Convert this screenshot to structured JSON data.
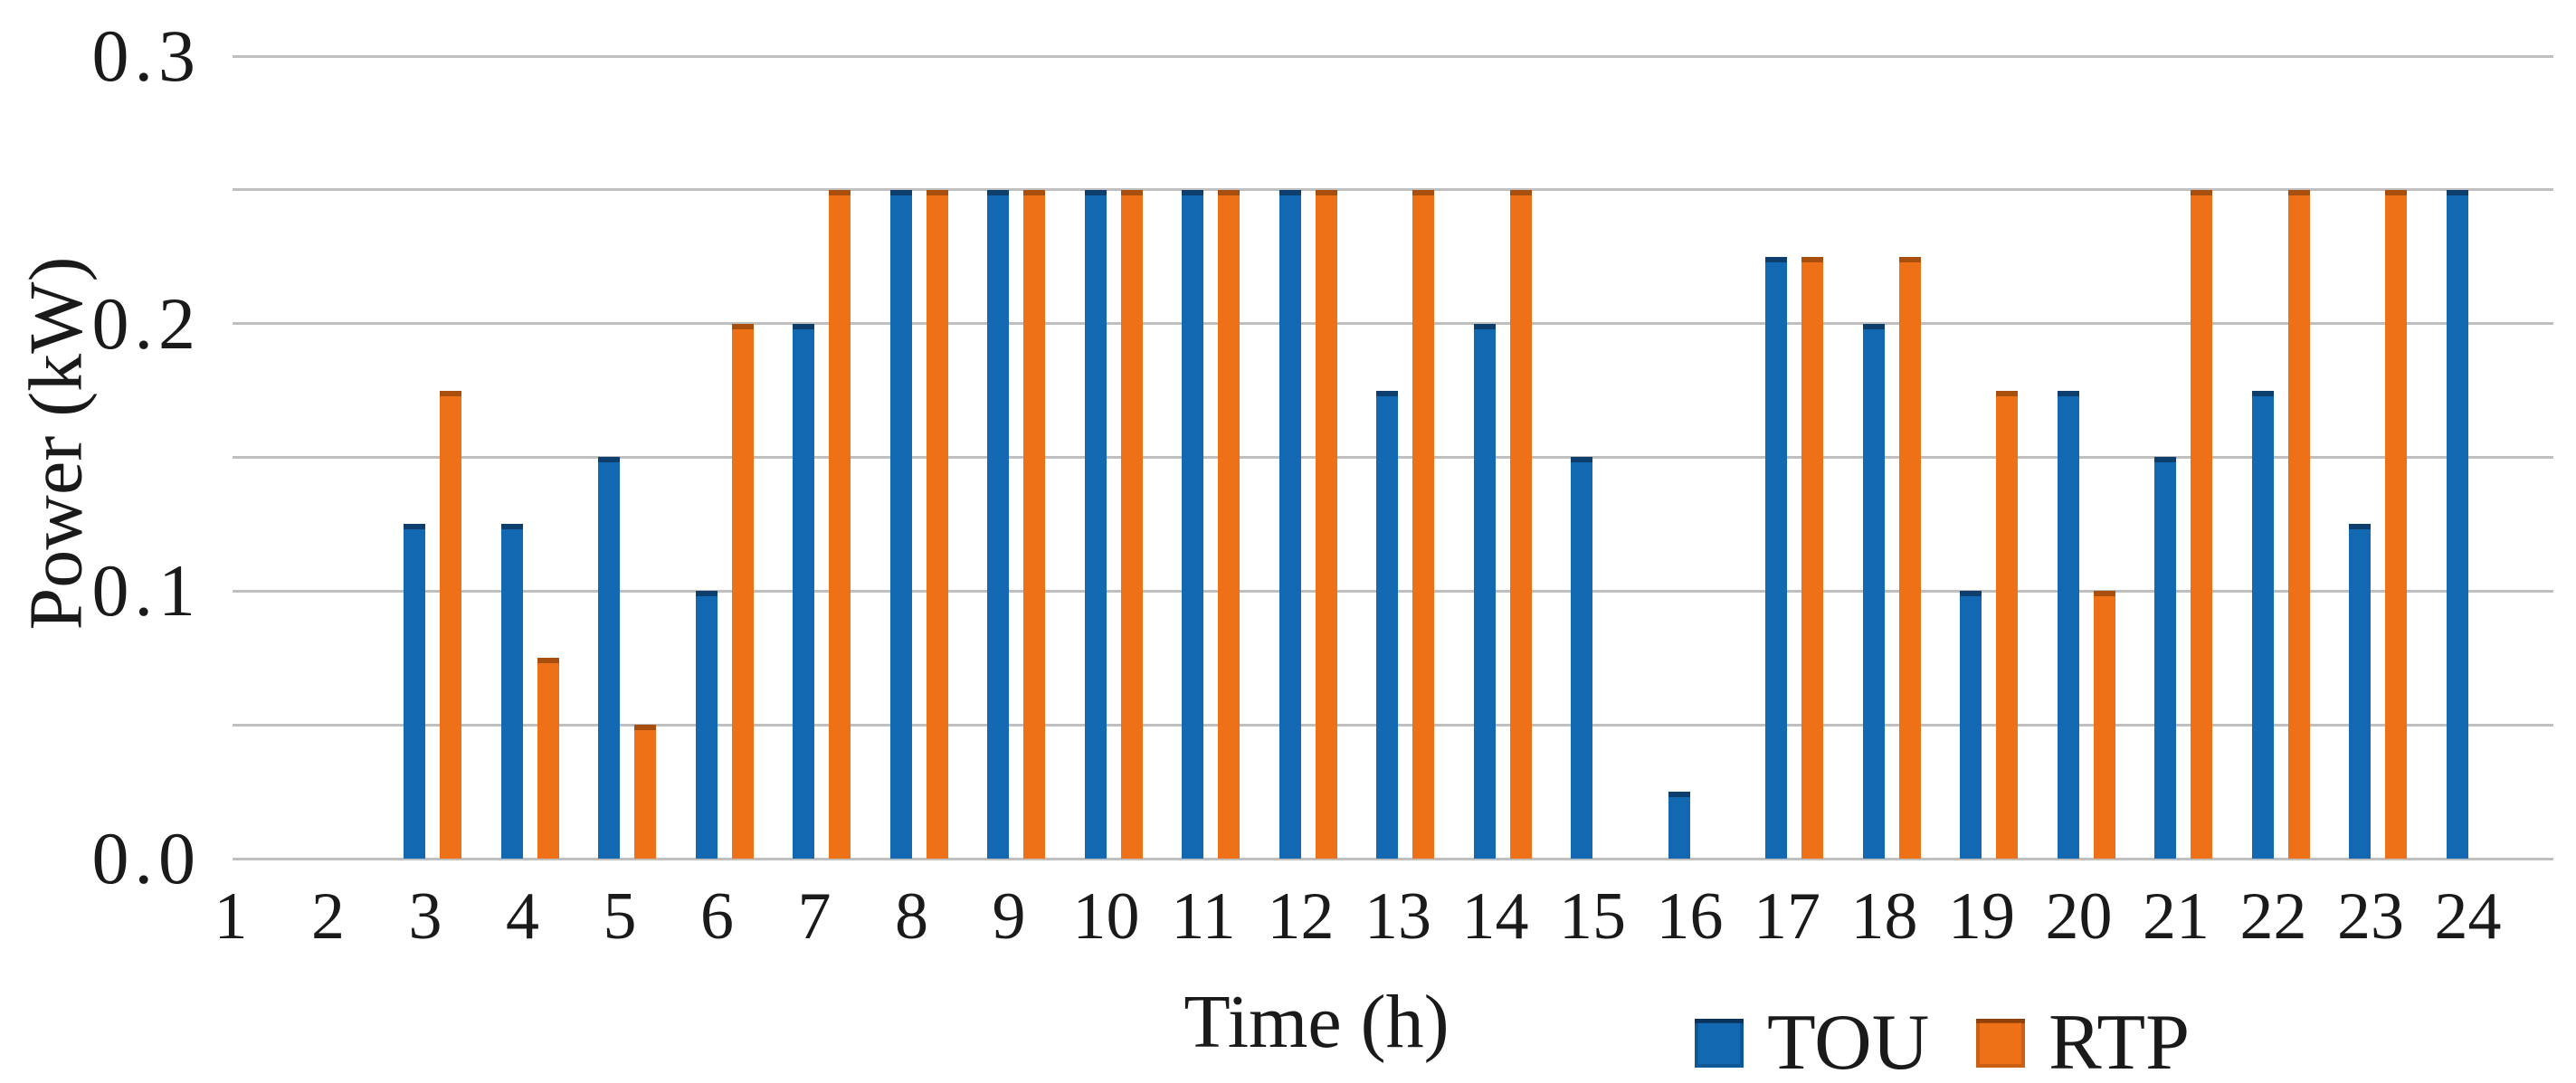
{
  "chart_data": {
    "type": "bar",
    "title": "",
    "xlabel": "Time (h)",
    "ylabel": "Power (kW)",
    "categories": [
      1,
      2,
      3,
      4,
      5,
      6,
      7,
      8,
      9,
      10,
      11,
      12,
      13,
      14,
      15,
      16,
      17,
      18,
      19,
      20,
      21,
      22,
      23,
      24
    ],
    "series": [
      {
        "name": "TOU",
        "color": "#1268b1",
        "cap_color": "#0d3e6e",
        "values": [
          0,
          0,
          0.125,
          0.125,
          0.15,
          0.1,
          0.2,
          0.25,
          0.25,
          0.25,
          0.25,
          0.25,
          0.175,
          0.2,
          0.15,
          0.025,
          0.225,
          0.2,
          0.1,
          0.175,
          0.15,
          0.175,
          0.125,
          0.25
        ]
      },
      {
        "name": "RTP",
        "color": "#ee7118",
        "cap_color": "#a84f0e",
        "values": [
          0,
          0,
          0.175,
          0.075,
          0.05,
          0.2,
          0.25,
          0.25,
          0.25,
          0.25,
          0.25,
          0.25,
          0.25,
          0.25,
          0,
          0,
          0.225,
          0.225,
          0.175,
          0.1,
          0.25,
          0.25,
          0.25,
          0
        ]
      }
    ],
    "ylim": [
      0,
      0.3
    ],
    "ytick_step": 0.05,
    "ytick_labels": [
      {
        "value": 0.0,
        "label": "0.0"
      },
      {
        "value": 0.1,
        "label": "0.1"
      },
      {
        "value": 0.2,
        "label": "0.2"
      },
      {
        "value": 0.3,
        "label": "0.3"
      }
    ],
    "grid": "horizontal",
    "gridline_color": "#bfbfbf",
    "legend_position": "bottom-right",
    "legend": [
      "TOU",
      "RTP"
    ],
    "text_color": "#1a1a1a"
  }
}
